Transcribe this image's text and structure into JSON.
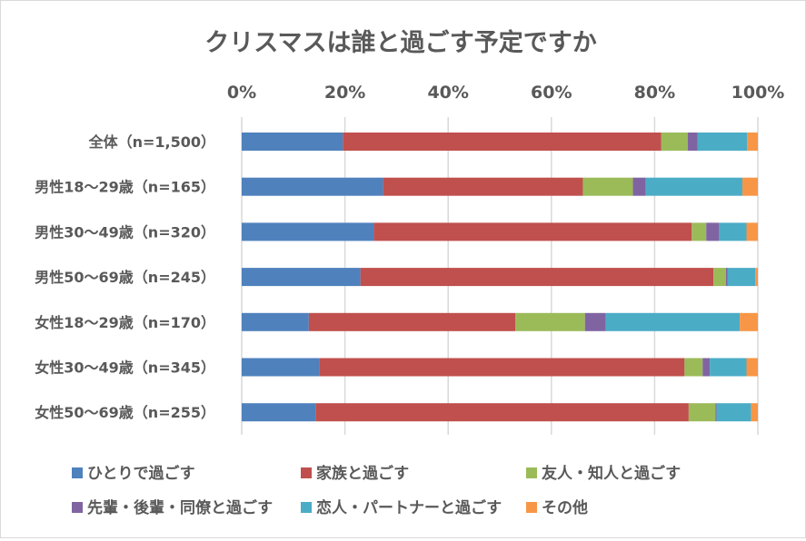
{
  "chart_data": {
    "type": "bar",
    "orientation": "horizontal",
    "stacked": "percent",
    "title": "クリスマスは誰と過ごす予定ですか",
    "categories": [
      "全体（n=1,500）",
      "男性18〜29歳（n=165）",
      "男性30〜49歳（n=320）",
      "男性50〜69歳（n=245）",
      "女性18〜29歳（n=170）",
      "女性30〜49歳（n=345）",
      "女性50〜69歳（n=255）"
    ],
    "xlim": [
      0,
      100
    ],
    "x_ticks": [
      "0%",
      "20%",
      "40%",
      "60%",
      "80%",
      "100%"
    ],
    "x_axis_position": "top",
    "grid": true,
    "legend_position": "bottom",
    "series": [
      {
        "name": "ひとりで過ごす",
        "color": "#4f81bd",
        "values": [
          19.6,
          27.4,
          25.6,
          23.0,
          13.0,
          15.0,
          14.3
        ]
      },
      {
        "name": "家族と過ごす",
        "color": "#c0504d",
        "values": [
          61.7,
          38.7,
          61.6,
          68.4,
          40.0,
          70.8,
          72.3
        ]
      },
      {
        "name": "友人・知人と過ごす",
        "color": "#9bbb59",
        "values": [
          5.1,
          9.7,
          2.8,
          2.4,
          13.5,
          3.5,
          5.2
        ]
      },
      {
        "name": "先輩・後輩・同僚と過ごす",
        "color": "#8064a2",
        "values": [
          1.9,
          2.5,
          2.5,
          0.3,
          4.0,
          1.4,
          0.2
        ]
      },
      {
        "name": "恋人・パートナーと過ごす",
        "color": "#4bacc6",
        "values": [
          9.6,
          18.7,
          5.3,
          5.4,
          26.0,
          7.1,
          6.7
        ]
      },
      {
        "name": "その他",
        "color": "#f79646",
        "values": [
          2.1,
          3.0,
          2.2,
          0.5,
          3.5,
          2.2,
          1.3
        ]
      }
    ]
  }
}
